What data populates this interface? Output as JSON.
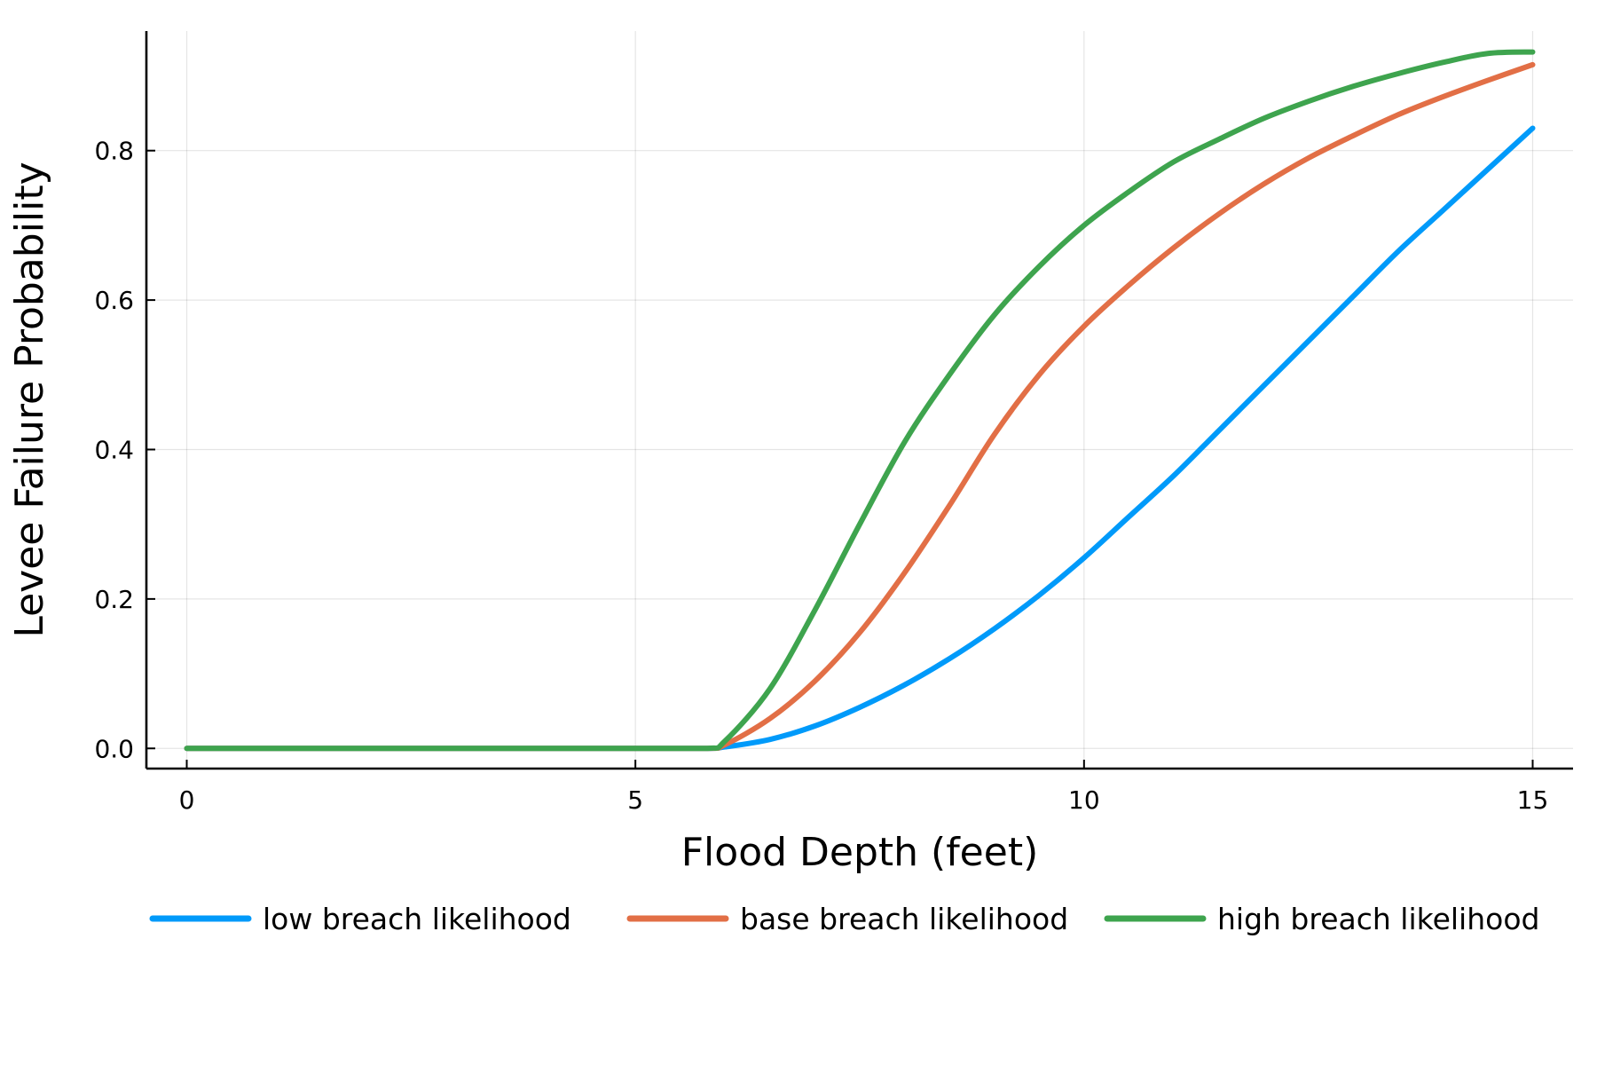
{
  "chart_data": {
    "type": "line",
    "xlabel": "Flood Depth (feet)",
    "ylabel": "Levee Failure Probability",
    "xlim": [
      -0.45,
      15.45
    ],
    "ylim": [
      -0.027,
      0.96
    ],
    "x_ticks": [
      0,
      5,
      10,
      15
    ],
    "x_tick_labels": [
      "0",
      "5",
      "10",
      "15"
    ],
    "y_ticks": [
      0.0,
      0.2,
      0.4,
      0.6,
      0.8
    ],
    "y_tick_labels": [
      "0.0",
      "0.2",
      "0.4",
      "0.6",
      "0.8"
    ],
    "grid": true,
    "legend_position": "bottom",
    "x": [
      0,
      1,
      2,
      3,
      4,
      5,
      5.8,
      6,
      6.5,
      7,
      7.5,
      8,
      8.5,
      9,
      9.5,
      10,
      10.5,
      11,
      11.5,
      12,
      12.5,
      13,
      13.5,
      14,
      14.5,
      15
    ],
    "series": [
      {
        "name": "low breach likelihood",
        "color": "#009AFA",
        "values": [
          0,
          0,
          0,
          0,
          0,
          0,
          0,
          0.002,
          0.012,
          0.03,
          0.055,
          0.085,
          0.12,
          0.16,
          0.205,
          0.255,
          0.31,
          0.365,
          0.425,
          0.485,
          0.545,
          0.605,
          0.665,
          0.72,
          0.775,
          0.83
        ]
      },
      {
        "name": "base breach likelihood",
        "color": "#E26F46",
        "values": [
          0,
          0,
          0,
          0,
          0,
          0,
          0,
          0.005,
          0.04,
          0.09,
          0.155,
          0.235,
          0.325,
          0.42,
          0.5,
          0.565,
          0.62,
          0.67,
          0.715,
          0.755,
          0.79,
          0.82,
          0.848,
          0.872,
          0.894,
          0.915
        ]
      },
      {
        "name": "high breach likelihood",
        "color": "#3EA44E",
        "values": [
          0,
          0,
          0,
          0,
          0,
          0,
          0,
          0.01,
          0.08,
          0.185,
          0.3,
          0.41,
          0.5,
          0.58,
          0.645,
          0.7,
          0.745,
          0.785,
          0.815,
          0.843,
          0.866,
          0.886,
          0.903,
          0.918,
          0.93,
          0.932
        ]
      }
    ]
  }
}
